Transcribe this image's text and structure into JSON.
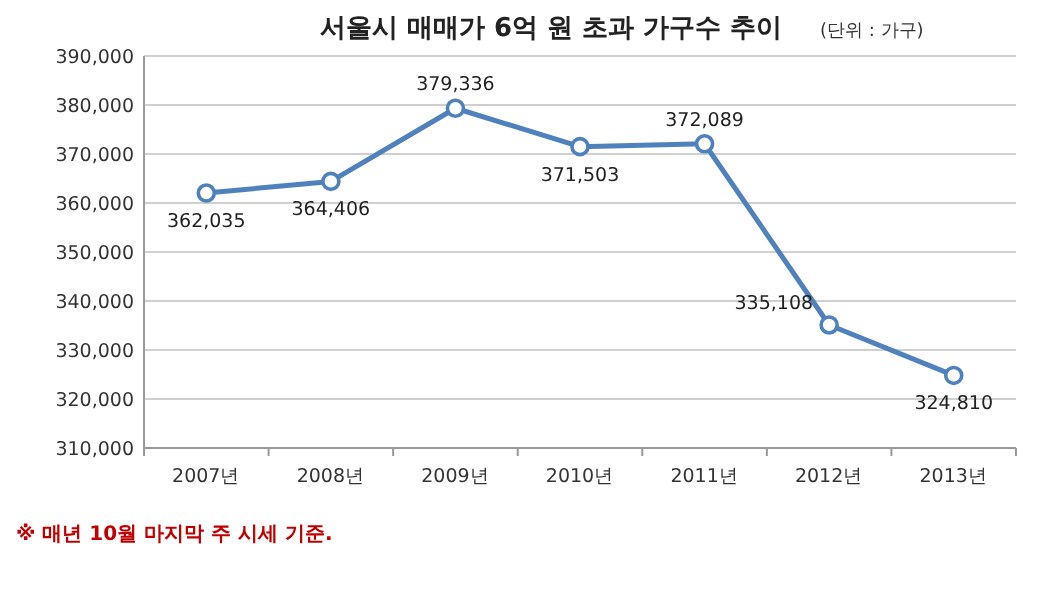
{
  "chart_data": {
    "type": "line",
    "title": "서울시 매매가 6억 원 초과 가구수 추이",
    "subtitle": "(단위 : 가구)",
    "categories": [
      "2007년",
      "2008년",
      "2009년",
      "2010년",
      "2011년",
      "2012년",
      "2013년"
    ],
    "series": [
      {
        "color": "#4f81bd",
        "values": [
          362035,
          364406,
          379336,
          371503,
          372089,
          335108,
          324810
        ],
        "value_labels": [
          "362,035",
          "364,406",
          "379,336",
          "371,503",
          "372,089",
          "335,108",
          "324,810"
        ]
      }
    ],
    "ylim": [
      310000,
      390000
    ],
    "yticks": [
      {
        "value": 310000,
        "label": "310,000"
      },
      {
        "value": 320000,
        "label": "320,000"
      },
      {
        "value": 330000,
        "label": "330,000"
      },
      {
        "value": 340000,
        "label": "340,000"
      },
      {
        "value": 350000,
        "label": "350,000"
      },
      {
        "value": 360000,
        "label": "360,000"
      },
      {
        "value": 370000,
        "label": "370,000"
      },
      {
        "value": 380000,
        "label": "380,000"
      },
      {
        "value": 390000,
        "label": "390,000"
      }
    ],
    "grid": "y",
    "marker": "circle",
    "line_style": "solid",
    "annotations": [
      "※ 매년 10월 마지막 주 시세 기준."
    ]
  }
}
